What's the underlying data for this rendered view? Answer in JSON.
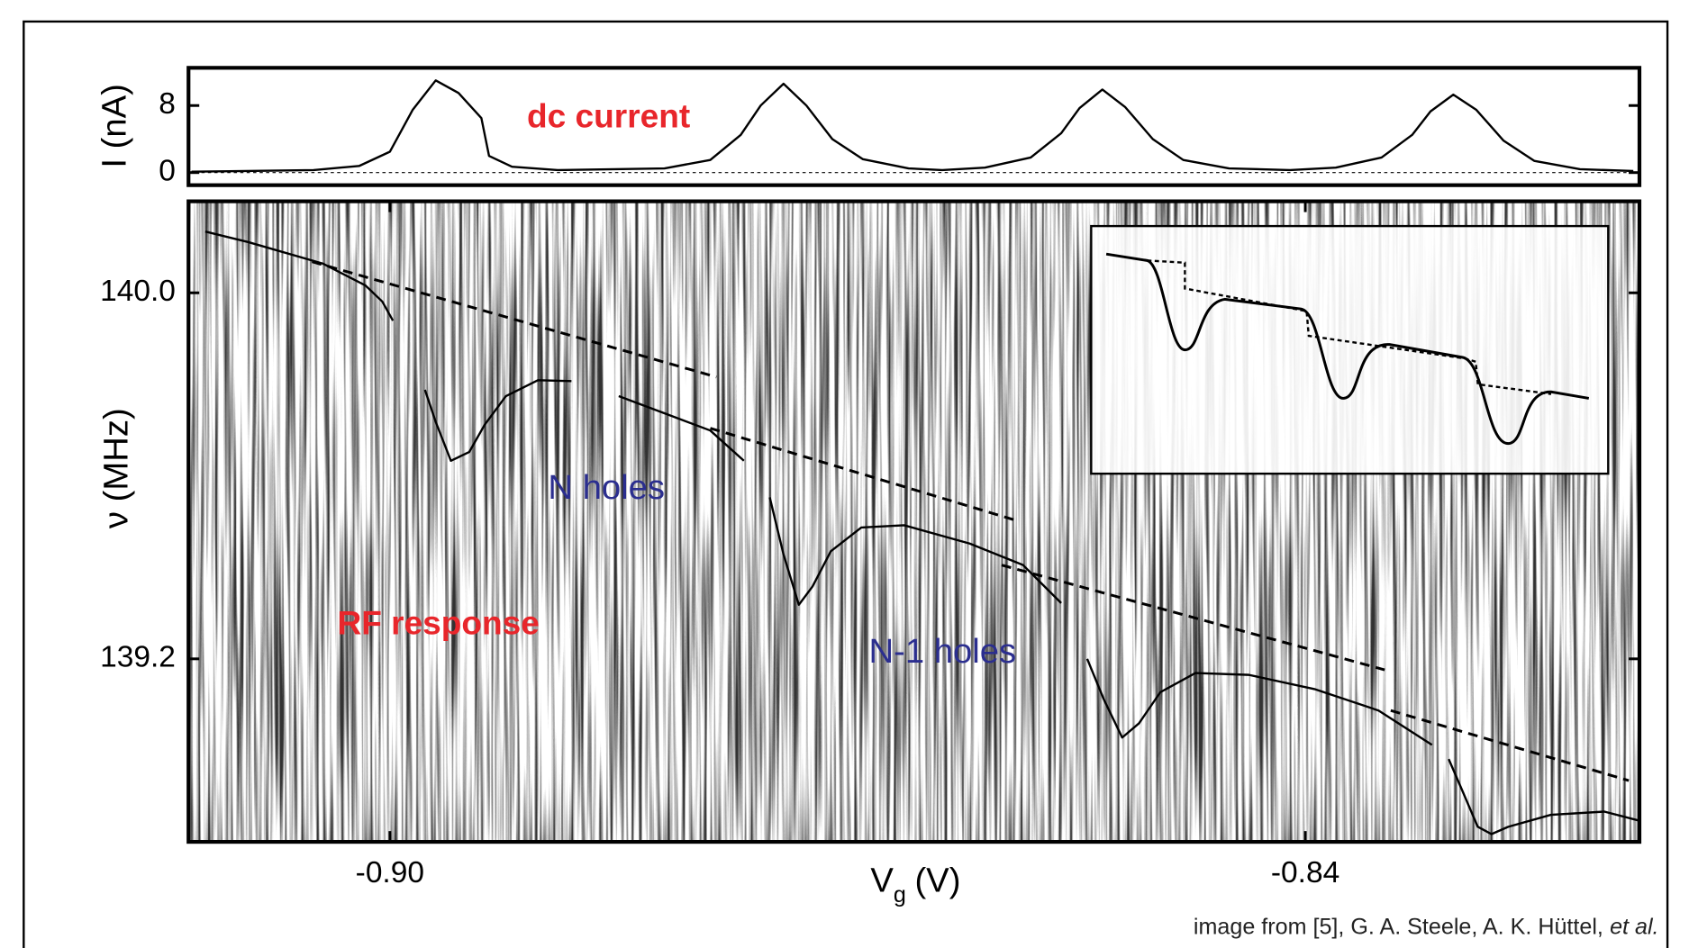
{
  "chart_data": [
    {
      "type": "line",
      "y_label": "I (nA)",
      "xlim": [
        -0.9132,
        -0.8181
      ],
      "ylim": [
        -1.5,
        12.5
      ],
      "yticks": [
        0,
        8
      ],
      "reference_line": 0,
      "annotations": [
        {
          "text": "dc current",
          "color": "#e8262b"
        }
      ],
      "series": [
        {
          "color": "#000000",
          "style": "solid",
          "x": [
            -0.913,
            -0.905,
            -0.902,
            -0.9,
            -0.8985,
            -0.897,
            -0.8955,
            -0.894,
            -0.8935,
            -0.892,
            -0.889,
            -0.882,
            -0.879,
            -0.877,
            -0.8757,
            -0.8742,
            -0.8727,
            -0.871,
            -0.869,
            -0.866,
            -0.8638,
            -0.861,
            -0.858,
            -0.856,
            -0.8548,
            -0.8533,
            -0.8518,
            -0.85,
            -0.848,
            -0.845,
            -0.841,
            -0.838,
            -0.835,
            -0.833,
            -0.8318,
            -0.8303,
            -0.8288,
            -0.827,
            -0.825,
            -0.822,
            -0.8185
          ],
          "values": [
            0.1,
            0.3,
            0.8,
            2.5,
            7.5,
            11.0,
            9.5,
            6.5,
            2.0,
            0.7,
            0.3,
            0.5,
            1.5,
            4.5,
            8.0,
            10.6,
            8.0,
            4.0,
            1.6,
            0.5,
            0.3,
            0.6,
            1.8,
            4.7,
            7.7,
            9.9,
            7.8,
            4.0,
            1.5,
            0.5,
            0.3,
            0.6,
            1.8,
            4.5,
            7.3,
            9.3,
            7.5,
            3.8,
            1.4,
            0.4,
            0.2
          ]
        }
      ]
    },
    {
      "type": "line",
      "image_background": true,
      "y_label": "ν (MHz)",
      "x_label": "V",
      "x_label_sub": "g",
      "x_label_unit": "(V)",
      "xlim": [
        -0.9132,
        -0.8181
      ],
      "ylim": [
        138.8,
        140.2
      ],
      "xticks": [
        {
          "value": -0.9,
          "label": "-0.90"
        },
        {
          "value": -0.84,
          "label": "-0.84"
        }
      ],
      "yticks": [
        {
          "value": 140.0,
          "label": "140.0"
        },
        {
          "value": 139.2,
          "label": "139.2"
        }
      ],
      "annotations": [
        {
          "text": "RF response",
          "color": "#e8262b"
        },
        {
          "text": "N holes",
          "color": "#2b2e8f"
        },
        {
          "text": "N-1 holes",
          "color": "#2b2e8f"
        }
      ],
      "series": [
        {
          "color": "#000000",
          "style": "solid",
          "x": [
            -0.9121,
            -0.9093,
            -0.9044,
            -0.9016,
            -0.9005,
            -0.8998,
            null,
            -0.8977,
            -0.897,
            -0.896,
            -0.8948,
            -0.8938,
            -0.8924,
            -0.8903,
            -0.8881,
            null,
            -0.885,
            -0.8818,
            -0.879,
            -0.8768,
            null,
            -0.8751,
            -0.8742,
            -0.8732,
            -0.8723,
            -0.8711,
            -0.8691,
            -0.8663,
            -0.862,
            -0.8585,
            -0.856,
            null,
            -0.8543,
            -0.8532,
            -0.852,
            -0.8509,
            -0.8495,
            -0.8472,
            -0.8437,
            -0.8394,
            -0.8352,
            -0.8317,
            null,
            -0.8306,
            -0.8297,
            -0.8287,
            -0.8278,
            -0.8267,
            -0.8239,
            -0.8204,
            -0.8182
          ],
          "values": [
            140.134,
            140.111,
            140.064,
            140.016,
            139.981,
            139.939,
            null,
            139.788,
            139.718,
            139.633,
            139.652,
            139.711,
            139.774,
            139.809,
            139.807,
            null,
            139.774,
            139.734,
            139.699,
            139.633,
            null,
            139.553,
            139.428,
            139.318,
            139.358,
            139.435,
            139.487,
            139.492,
            139.452,
            139.405,
            139.322,
            null,
            139.2,
            139.111,
            139.028,
            139.059,
            139.127,
            139.169,
            139.165,
            139.134,
            139.087,
            139.012,
            null,
            138.981,
            138.911,
            138.833,
            138.817,
            138.833,
            138.859,
            138.866,
            138.847
          ]
        },
        {
          "color": "#000000",
          "style": "dashed",
          "x": [
            -0.9051,
            -0.8786,
            null,
            -0.879,
            -0.8588,
            null,
            -0.8599,
            -0.8348,
            null,
            -0.8344,
            -0.8188
          ],
          "values": [
            140.068,
            139.816,
            null,
            139.704,
            139.501,
            null,
            139.405,
            139.176,
            null,
            139.087,
            138.934
          ]
        }
      ]
    }
  ],
  "caption": "image from [5], G. A. Steele, A. K. Hüttel,",
  "caption_italic": "et al."
}
